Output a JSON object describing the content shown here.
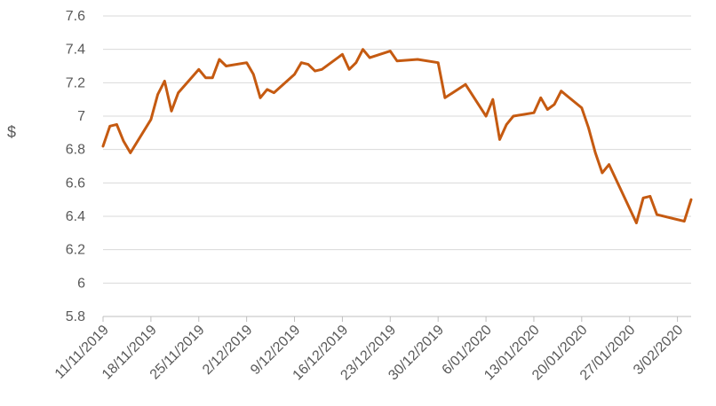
{
  "chart_data": {
    "type": "line",
    "title": "",
    "xlabel": "",
    "ylabel": "$",
    "ylim": [
      5.8,
      7.6
    ],
    "y_ticks": [
      "7.6",
      "7.4",
      "7.2",
      "7",
      "6.8",
      "6.6",
      "6.4",
      "6.2",
      "6",
      "5.8"
    ],
    "x_tick_labels": [
      "11/11/2019",
      "18/11/2019",
      "25/11/2019",
      "2/12/2019",
      "9/12/2019",
      "16/12/2019",
      "23/12/2019",
      "30/12/2019",
      "6/01/2020",
      "13/01/2020",
      "20/01/2020",
      "27/01/2020",
      "3/02/2020"
    ],
    "xlim": [
      "2019-11-11",
      "2020-02-05"
    ],
    "grid": "horizontal",
    "line_color": "#C55A11",
    "series": [
      {
        "points": [
          [
            "2019-11-11",
            6.82
          ],
          [
            "2019-11-12",
            6.94
          ],
          [
            "2019-11-13",
            6.95
          ],
          [
            "2019-11-14",
            6.85
          ],
          [
            "2019-11-15",
            6.78
          ],
          [
            "2019-11-18",
            6.98
          ],
          [
            "2019-11-19",
            7.13
          ],
          [
            "2019-11-20",
            7.21
          ],
          [
            "2019-11-21",
            7.03
          ],
          [
            "2019-11-22",
            7.14
          ],
          [
            "2019-11-25",
            7.28
          ],
          [
            "2019-11-26",
            7.23
          ],
          [
            "2019-11-27",
            7.23
          ],
          [
            "2019-11-28",
            7.34
          ],
          [
            "2019-11-29",
            7.3
          ],
          [
            "2019-12-02",
            7.32
          ],
          [
            "2019-12-03",
            7.25
          ],
          [
            "2019-12-04",
            7.11
          ],
          [
            "2019-12-05",
            7.16
          ],
          [
            "2019-12-06",
            7.14
          ],
          [
            "2019-12-09",
            7.25
          ],
          [
            "2019-12-10",
            7.32
          ],
          [
            "2019-12-11",
            7.31
          ],
          [
            "2019-12-12",
            7.27
          ],
          [
            "2019-12-13",
            7.28
          ],
          [
            "2019-12-16",
            7.37
          ],
          [
            "2019-12-17",
            7.28
          ],
          [
            "2019-12-18",
            7.32
          ],
          [
            "2019-12-19",
            7.4
          ],
          [
            "2019-12-20",
            7.35
          ],
          [
            "2019-12-23",
            7.39
          ],
          [
            "2019-12-24",
            7.33
          ],
          [
            "2019-12-27",
            7.34
          ],
          [
            "2019-12-30",
            7.32
          ],
          [
            "2019-12-31",
            7.11
          ],
          [
            "2020-01-03",
            7.19
          ],
          [
            "2020-01-06",
            7.0
          ],
          [
            "2020-01-07",
            7.1
          ],
          [
            "2020-01-08",
            6.86
          ],
          [
            "2020-01-09",
            6.95
          ],
          [
            "2020-01-10",
            7.0
          ],
          [
            "2020-01-13",
            7.02
          ],
          [
            "2020-01-14",
            7.11
          ],
          [
            "2020-01-15",
            7.04
          ],
          [
            "2020-01-16",
            7.07
          ],
          [
            "2020-01-17",
            7.15
          ],
          [
            "2020-01-20",
            7.05
          ],
          [
            "2020-01-21",
            6.93
          ],
          [
            "2020-01-22",
            6.78
          ],
          [
            "2020-01-23",
            6.66
          ],
          [
            "2020-01-24",
            6.71
          ],
          [
            "2020-01-28",
            6.36
          ],
          [
            "2020-01-29",
            6.51
          ],
          [
            "2020-01-30",
            6.52
          ],
          [
            "2020-01-31",
            6.41
          ],
          [
            "2020-02-04",
            6.37
          ],
          [
            "2020-02-05",
            6.5
          ]
        ]
      }
    ]
  }
}
